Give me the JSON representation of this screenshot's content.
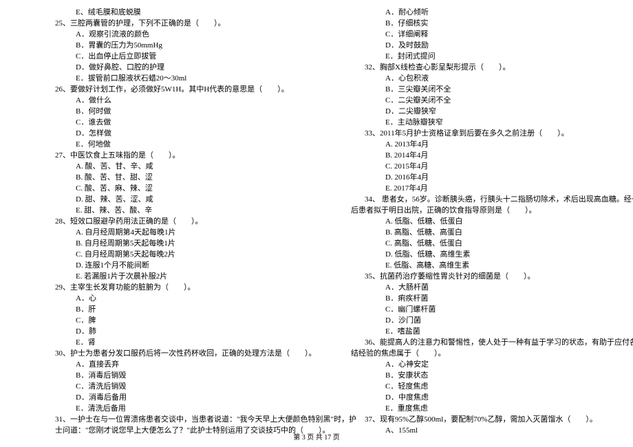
{
  "left": [
    {
      "cls": "opt",
      "t": "E、绒毛膜和底蜕膜"
    },
    {
      "cls": "q",
      "t": "25、三腔两囊管的护理，下列不正确的是（　　）。"
    },
    {
      "cls": "opt",
      "t": "A．观察引流液的颜色"
    },
    {
      "cls": "opt",
      "t": "B．胃囊的压力为50mmHg"
    },
    {
      "cls": "opt",
      "t": "C．出血停止后立即拔管"
    },
    {
      "cls": "opt",
      "t": "D．做好鼻腔、口腔的护理"
    },
    {
      "cls": "opt",
      "t": "E．拔管前口服液状石蜡20～30ml"
    },
    {
      "cls": "q",
      "t": "26、要做好计划工作，必须做好5W1H。其中H代表的意思是（　　）。"
    },
    {
      "cls": "opt",
      "t": "A．做什么"
    },
    {
      "cls": "opt",
      "t": "B．何时做"
    },
    {
      "cls": "opt",
      "t": "C．谁去做"
    },
    {
      "cls": "opt",
      "t": "D．怎样做"
    },
    {
      "cls": "opt",
      "t": "E．何地做"
    },
    {
      "cls": "q",
      "t": "27、中医饮食上五味指的是（　　）。"
    },
    {
      "cls": "opt",
      "t": "A. 酸、苦、甘、辛、咸"
    },
    {
      "cls": "opt",
      "t": "B. 酸、苦、甘、甜、涩"
    },
    {
      "cls": "opt",
      "t": "C. 酸、苦、麻、辣、涩"
    },
    {
      "cls": "opt",
      "t": "D. 甜、辣、苦、涩、咸"
    },
    {
      "cls": "opt",
      "t": "E. 甜、辣、苦、酸、辛"
    },
    {
      "cls": "q",
      "t": "28、短效口服避孕药用法正确的是（　　）。"
    },
    {
      "cls": "opt",
      "t": "A. 自月经周期第4天起每晚1片"
    },
    {
      "cls": "opt",
      "t": "B. 自月经周期第5天起每晚1片"
    },
    {
      "cls": "opt",
      "t": "C. 自月经周期第5天起每晚2片"
    },
    {
      "cls": "opt",
      "t": "D. 连服1个月不能间断"
    },
    {
      "cls": "opt",
      "t": "E. 若漏服1片于次晨补服2片"
    },
    {
      "cls": "q",
      "t": "29、主宰生长发育功能的脏腑为（　　）。"
    },
    {
      "cls": "opt",
      "t": "A．心"
    },
    {
      "cls": "opt",
      "t": "B．肝"
    },
    {
      "cls": "opt",
      "t": "C．脾"
    },
    {
      "cls": "opt",
      "t": "D．肺"
    },
    {
      "cls": "opt",
      "t": "E．肾"
    },
    {
      "cls": "q",
      "t": "30、护士为患者分发口服药后将一次性药杯收回，正确的处理方法是（　　）。"
    },
    {
      "cls": "opt",
      "t": "A．直接丢弃"
    },
    {
      "cls": "opt",
      "t": "B．消毒后销毁"
    },
    {
      "cls": "opt",
      "t": "C．清洗后销毁"
    },
    {
      "cls": "opt",
      "t": "D．消毒后备用"
    },
    {
      "cls": "opt",
      "t": "E．清洗后备用"
    },
    {
      "cls": "q",
      "t": "31、一护士在与一位胃溃疡患者交谈中，当患者说道：\"我今天早上大便颜色特别黑\"时，护"
    },
    {
      "cls": "q",
      "t": "士问道：\"您刚才说您早上大便怎么了？\"此护士特别运用了交谈技巧中的（　　）。"
    }
  ],
  "right": [
    {
      "cls": "opt",
      "t": "A．耐心倾听"
    },
    {
      "cls": "opt",
      "t": "B．仔细核实"
    },
    {
      "cls": "opt",
      "t": "C．详细阐释"
    },
    {
      "cls": "opt",
      "t": "D．及时鼓励"
    },
    {
      "cls": "opt",
      "t": "E．封闭式提问"
    },
    {
      "cls": "q",
      "t": "32、胸部X线检查心影呈梨形提示（　　）。"
    },
    {
      "cls": "opt",
      "t": "A．心包积液"
    },
    {
      "cls": "opt",
      "t": "B．三尖瓣关闭不全"
    },
    {
      "cls": "opt",
      "t": "C．二尖瓣关闭不全"
    },
    {
      "cls": "opt",
      "t": "D．二尖瓣狭窄"
    },
    {
      "cls": "opt",
      "t": "E．主动脉瓣狭窄"
    },
    {
      "cls": "q",
      "t": "33、2011年5月护士资格证拿到后要在多久之前注册（　　）。"
    },
    {
      "cls": "opt",
      "t": "A. 2013年4月"
    },
    {
      "cls": "opt",
      "t": "B. 2014年4月"
    },
    {
      "cls": "opt",
      "t": "C. 2015年4月"
    },
    {
      "cls": "opt",
      "t": "D. 2016年4月"
    },
    {
      "cls": "opt",
      "t": "E. 2017年4月"
    },
    {
      "cls": "q",
      "t": "34、 患者女，56岁。诊断胰头癌，行胰头十二指肠切除术，术后出现高血糖。经一段时间治疗"
    },
    {
      "cls": "q2",
      "t": "后患者拟于明日出院，正确的饮食指导原则是（　　）。"
    },
    {
      "cls": "opt",
      "t": "A. 低脂、低糖、低蛋白"
    },
    {
      "cls": "opt",
      "t": "B. 高脂、低糖、高蛋白"
    },
    {
      "cls": "opt",
      "t": "C. 高脂、低糖、低蛋白"
    },
    {
      "cls": "opt",
      "t": "D. 低脂、低糖、高维生素"
    },
    {
      "cls": "opt",
      "t": "E. 低脂、高糖、高维生素"
    },
    {
      "cls": "q",
      "t": "35、抗菌药治疗萎缩性胃炎针对的细菌是（　　）。"
    },
    {
      "cls": "opt",
      "t": "A．大肠杆菌"
    },
    {
      "cls": "opt",
      "t": "B．痢疾杆菌"
    },
    {
      "cls": "opt",
      "t": "C．幽门螺杆菌"
    },
    {
      "cls": "opt",
      "t": "D．沙门菌"
    },
    {
      "cls": "opt",
      "t": "E．嗜盐菌"
    },
    {
      "cls": "q",
      "t": "36、能提高人的注意力和警惕性，使人处于一种有益于学习的状态，有助于应付各种情境和总"
    },
    {
      "cls": "q2",
      "t": "结经验的焦虑属于（　　）。"
    },
    {
      "cls": "opt",
      "t": "A．心神安定"
    },
    {
      "cls": "opt",
      "t": "B．安康状态"
    },
    {
      "cls": "opt",
      "t": "C．轻度焦虑"
    },
    {
      "cls": "opt",
      "t": "D．中度焦虑"
    },
    {
      "cls": "opt",
      "t": "E．重度焦虑"
    },
    {
      "cls": "q",
      "t": "37、现有95%乙醇500ml，要配制70%乙醇，需加入灭菌馏水（　　）。"
    },
    {
      "cls": "opt",
      "t": "A、155ml"
    }
  ],
  "footer": "第 3 页 共 17 页"
}
